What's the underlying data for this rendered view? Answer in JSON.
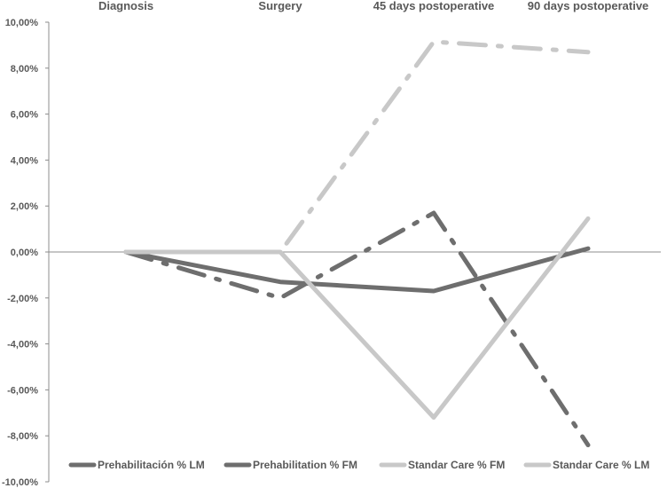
{
  "chart_data": {
    "type": "line",
    "categories": [
      "Diagnosis",
      "Surgery",
      "45 days postoperative",
      "90 days postoperative"
    ],
    "y_ticks": [
      "10,00%",
      "8,00%",
      "6,00%",
      "4,00%",
      "2,00%",
      "0,00%",
      "-2,00%",
      "-4,00%",
      "-6,00%",
      "-8,00%",
      "-10,00%"
    ],
    "ylim": [
      -10,
      10
    ],
    "y_unit": "%",
    "grid": false,
    "legend_position": "bottom",
    "series": [
      {
        "name": "Prehabilitación % LM",
        "values": [
          0,
          -1.3,
          -1.7,
          0.15
        ],
        "color": "#6e6e6e",
        "dash": "solid"
      },
      {
        "name": "Prehabilitation % FM",
        "values": [
          0,
          -2.0,
          1.7,
          -8.4
        ],
        "color": "#6e6e6e",
        "dash": "dashdot"
      },
      {
        "name": "Standar Care % FM",
        "values": [
          0,
          0,
          9.15,
          8.7
        ],
        "color": "#c8c8c8",
        "dash": "dashdot"
      },
      {
        "name": "Standar Care % LM",
        "values": [
          0,
          0,
          -7.2,
          1.45
        ],
        "color": "#c8c8c8",
        "dash": "solid"
      }
    ]
  }
}
